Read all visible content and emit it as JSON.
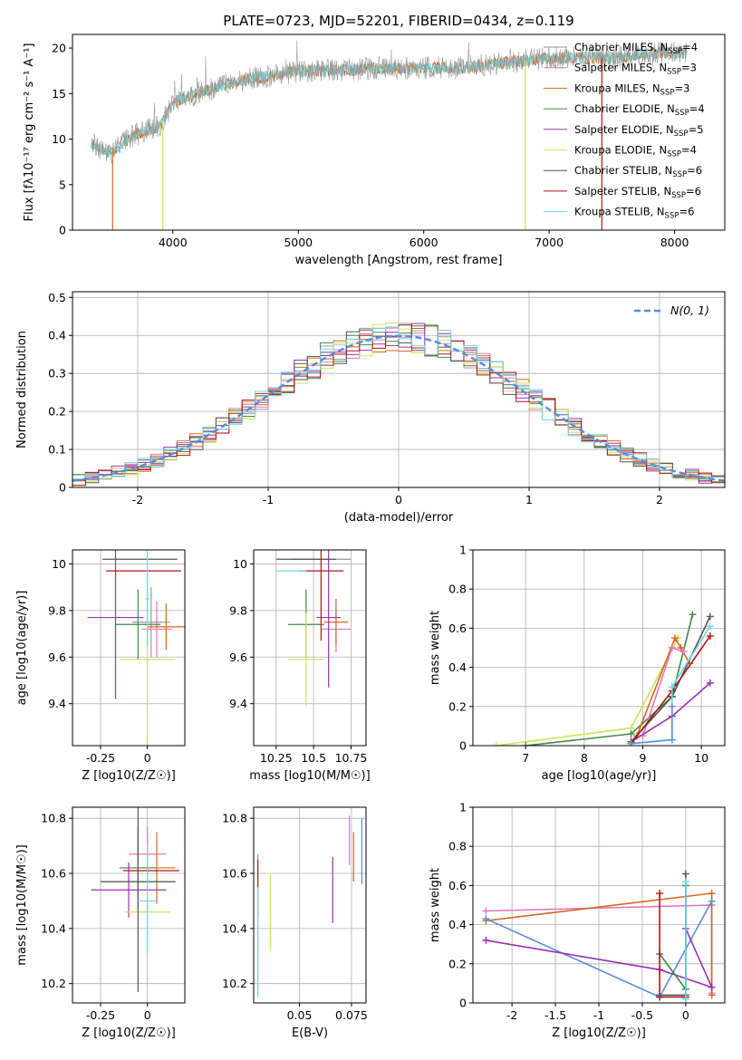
{
  "figure": {
    "title": "PLATE=0723, MJD=52201, FIBERID=0434, z=0.119"
  },
  "colors": {
    "chabrier_miles": "#999999",
    "salpeter_miles": "#e377c2",
    "kroupa_miles": "#d2691e",
    "chabrier_elodie": "#3c8c46",
    "salpeter_elodie": "#9b30b4",
    "kroupa_elodie": "#d4e157",
    "chabrier_stelib": "#555555",
    "salpeter_stelib": "#b01616",
    "kroupa_stelib": "#6fd8e0",
    "normal": "#5b8dd9"
  },
  "legend": [
    {
      "key": "chabrier_miles",
      "label": "Chabrier MILES, N",
      "sub": "SSP",
      "val": "=4"
    },
    {
      "key": "salpeter_miles",
      "label": "Salpeter MILES, N",
      "sub": "SSP",
      "val": "=3"
    },
    {
      "key": "kroupa_miles",
      "label": "Kroupa MILES, N",
      "sub": "SSP",
      "val": "=3"
    },
    {
      "key": "chabrier_elodie",
      "label": "Chabrier ELODIE, N",
      "sub": "SSP",
      "val": "=4"
    },
    {
      "key": "salpeter_elodie",
      "label": "Salpeter ELODIE, N",
      "sub": "SSP",
      "val": "=5"
    },
    {
      "key": "kroupa_elodie",
      "label": "Kroupa ELODIE, N",
      "sub": "SSP",
      "val": "=4"
    },
    {
      "key": "chabrier_stelib",
      "label": "Chabrier STELIB, N",
      "sub": "SSP",
      "val": "=6"
    },
    {
      "key": "salpeter_stelib",
      "label": "Salpeter STELIB, N",
      "sub": "SSP",
      "val": "=6"
    },
    {
      "key": "kroupa_stelib",
      "label": "Kroupa STELIB, N",
      "sub": "SSP",
      "val": "=6"
    }
  ],
  "chart_data": [
    {
      "id": "spectrum",
      "type": "line",
      "xlabel": "wavelength [Angstrom, rest frame]",
      "ylabel": "Flux [fλ10⁻¹⁷ erg cm⁻² s⁻¹ A⁻¹]",
      "xlim": [
        3200,
        8400
      ],
      "ylim": [
        0,
        21.5
      ],
      "xticks": [
        4000,
        5000,
        6000,
        7000,
        8000
      ],
      "yticks": [
        0,
        5,
        10,
        15,
        20
      ],
      "continuum": {
        "x": [
          3350,
          3500,
          3700,
          3900,
          4000,
          4200,
          4400,
          4700,
          5000,
          5300,
          5600,
          6000,
          6300,
          6600,
          6900,
          7200,
          7500,
          7800,
          8100
        ],
        "y": [
          9.5,
          8.5,
          10.5,
          11.5,
          14,
          15,
          16,
          16.8,
          17.5,
          17.5,
          17.8,
          17.8,
          17.8,
          18.3,
          18.8,
          19,
          18.8,
          19.5,
          19.5
        ]
      },
      "cutoffs": [
        {
          "key": "kroupa_miles",
          "x": 3520
        },
        {
          "key": "kroupa_elodie",
          "x": 3920
        },
        {
          "key": "kroupa_elodie",
          "x": 6810
        },
        {
          "key": "salpeter_stelib",
          "x": 7420
        }
      ]
    },
    {
      "id": "residuals",
      "type": "histogram",
      "xlabel": "(data-model)/error",
      "ylabel": "Normed distribution",
      "xlim": [
        -2.5,
        2.5
      ],
      "ylim": [
        0,
        0.515
      ],
      "xticks": [
        -2,
        -1,
        0,
        1,
        2
      ],
      "yticks": [
        0.0,
        0.1,
        0.2,
        0.3,
        0.4,
        0.5
      ],
      "legend": "N(0, 1)",
      "bin_width": 0.1
    },
    {
      "id": "age_vs_Z",
      "type": "scatter",
      "xlabel": "Z [log10(Z/Z☉)]",
      "ylabel": "age [log10(age/yr)]",
      "xlim": [
        -0.4,
        0.2
      ],
      "ylim": [
        9.22,
        10.06
      ],
      "xticks": [
        -0.25,
        0.0
      ],
      "yticks": [
        9.4,
        9.6,
        9.8,
        10.0
      ],
      "points": [
        {
          "key": "chabrier_miles",
          "x": 0.02,
          "y": 9.75,
          "xerr": 0.1,
          "yerr": 0.15
        },
        {
          "key": "salpeter_miles",
          "x": 0.05,
          "y": 9.72,
          "xerr": 0.08,
          "yerr": 0.12
        },
        {
          "key": "kroupa_miles",
          "x": 0.1,
          "y": 9.73,
          "xerr": 0.1,
          "yerr": 0.1
        },
        {
          "key": "chabrier_elodie",
          "x": -0.05,
          "y": 9.74,
          "xerr": 0.12,
          "yerr": 0.15
        },
        {
          "key": "salpeter_elodie",
          "x": -0.17,
          "y": 9.77,
          "xerr": 0.15,
          "yerr": 0.35
        },
        {
          "key": "kroupa_elodie",
          "x": 0.0,
          "y": 9.59,
          "xerr": 0.15,
          "yerr": 0.35
        },
        {
          "key": "chabrier_stelib",
          "x": -0.04,
          "y": 10.02,
          "xerr": 0.2,
          "yerr": 0.0
        },
        {
          "key": "salpeter_stelib",
          "x": -0.02,
          "y": 9.97,
          "xerr": 0.2,
          "yerr": 0.0
        },
        {
          "key": "kroupa_stelib",
          "x": 0.0,
          "y": 9.85,
          "xerr": 0.01,
          "yerr": 0.2
        }
      ]
    },
    {
      "id": "age_vs_mass",
      "type": "scatter",
      "xlabel": "mass [log10(M/M☉)]",
      "ylabel": "",
      "xlim": [
        10.1,
        10.85
      ],
      "ylim": [
        9.22,
        10.06
      ],
      "xticks": [
        10.25,
        10.5,
        10.75
      ],
      "yticks": [
        9.4,
        9.6,
        9.8,
        10.0
      ],
      "points": [
        {
          "key": "chabrier_miles",
          "x": 10.55,
          "y": 10.02,
          "xerr": 0.2,
          "yerr": 0.0
        },
        {
          "key": "salpeter_miles",
          "x": 10.65,
          "y": 9.72,
          "xerr": 0.1,
          "yerr": 0.1
        },
        {
          "key": "kroupa_miles",
          "x": 10.65,
          "y": 9.75,
          "xerr": 0.08,
          "yerr": 0.1
        },
        {
          "key": "chabrier_elodie",
          "x": 10.45,
          "y": 9.74,
          "xerr": 0.12,
          "yerr": 0.15
        },
        {
          "key": "salpeter_elodie",
          "x": 10.6,
          "y": 9.77,
          "xerr": 0.08,
          "yerr": 0.3
        },
        {
          "key": "kroupa_elodie",
          "x": 10.45,
          "y": 9.59,
          "xerr": 0.12,
          "yerr": 0.2
        },
        {
          "key": "chabrier_stelib",
          "x": 10.45,
          "y": 10.02,
          "xerr": 0.2,
          "yerr": 0.0
        },
        {
          "key": "salpeter_stelib",
          "x": 10.55,
          "y": 9.97,
          "xerr": 0.15,
          "yerr": 0.3
        },
        {
          "key": "kroupa_stelib",
          "x": 10.35,
          "y": 9.97,
          "xerr": 0.1,
          "yerr": 0.0
        }
      ]
    },
    {
      "id": "weight_vs_age",
      "type": "line",
      "xlabel": "age [log10(age/yr)]",
      "ylabel": "mass weight",
      "xlim": [
        6.1,
        10.4
      ],
      "ylim": [
        0,
        1.0
      ],
      "xticks": [
        7,
        8,
        9,
        10
      ],
      "yticks": [
        0.0,
        0.2,
        0.4,
        0.6,
        0.8,
        1.0
      ],
      "series": [
        {
          "key": "kroupa_elodie",
          "x": [
            6.5,
            8.8,
            9.6
          ],
          "y": [
            0.0,
            0.09,
            0.55
          ]
        },
        {
          "key": "chabrier_elodie",
          "x": [
            7.0,
            8.8,
            9.5,
            9.85
          ],
          "y": [
            0.0,
            0.06,
            0.25,
            0.67
          ]
        },
        {
          "key": "kroupa_miles",
          "x": [
            8.9,
            9.55,
            9.65,
            9.8
          ],
          "y": [
            0.05,
            0.55,
            0.5,
            0.42
          ]
        },
        {
          "key": "salpeter_miles",
          "x": [
            9.0,
            9.5,
            9.7
          ],
          "y": [
            0.05,
            0.5,
            0.48
          ]
        },
        {
          "key": "salpeter_elodie",
          "x": [
            8.8,
            9.5,
            10.15
          ],
          "y": [
            0.02,
            0.15,
            0.32
          ]
        },
        {
          "key": "chabrier_stelib",
          "x": [
            8.8,
            9.5,
            10.15
          ],
          "y": [
            0.02,
            0.25,
            0.66
          ]
        },
        {
          "key": "salpeter_stelib",
          "x": [
            8.8,
            9.5,
            10.15
          ],
          "y": [
            0.01,
            0.28,
            0.56
          ]
        },
        {
          "key": "kroupa_stelib",
          "x": [
            8.8,
            9.5,
            9.5,
            10.15
          ],
          "y": [
            0.01,
            0.03,
            0.3,
            0.61
          ]
        },
        {
          "key": "normal",
          "x": [
            8.8,
            9.5,
            9.5
          ],
          "y": [
            0.01,
            0.03,
            0.2
          ]
        }
      ]
    },
    {
      "id": "mass_vs_Z",
      "type": "scatter",
      "xlabel": "Z [log10(Z/Z☉)]",
      "ylabel": "mass [log10(M/M☉)]",
      "xlim": [
        -0.4,
        0.2
      ],
      "ylim": [
        10.13,
        10.84
      ],
      "xticks": [
        -0.25,
        0.0
      ],
      "yticks": [
        10.2,
        10.4,
        10.6,
        10.8
      ],
      "points": [
        {
          "key": "chabrier_miles",
          "x": -0.05,
          "y": 10.57,
          "xerr": 0.2,
          "yerr": 0.0
        },
        {
          "key": "salpeter_miles",
          "x": 0.0,
          "y": 10.67,
          "xerr": 0.1,
          "yerr": 0.1
        },
        {
          "key": "kroupa_miles",
          "x": 0.05,
          "y": 10.62,
          "xerr": 0.1,
          "yerr": 0.13
        },
        {
          "key": "chabrier_elodie",
          "x": -0.05,
          "y": 10.62,
          "xerr": 0.1,
          "yerr": 0.15
        },
        {
          "key": "salpeter_elodie",
          "x": -0.1,
          "y": 10.54,
          "xerr": 0.2,
          "yerr": 0.1
        },
        {
          "key": "kroupa_elodie",
          "x": 0.0,
          "y": 10.46,
          "xerr": 0.12,
          "yerr": 0.15
        },
        {
          "key": "chabrier_stelib",
          "x": -0.05,
          "y": 10.57,
          "xerr": 0.2,
          "yerr": 0.4
        },
        {
          "key": "salpeter_stelib",
          "x": 0.02,
          "y": 10.61,
          "xerr": 0.15,
          "yerr": 0.0
        },
        {
          "key": "kroupa_stelib",
          "x": 0.0,
          "y": 10.5,
          "xerr": 0.05,
          "yerr": 0.2
        }
      ]
    },
    {
      "id": "mass_vs_EBV",
      "type": "scatter",
      "xlabel": "E(B-V)",
      "ylabel": "",
      "xlim": [
        0.028,
        0.082
      ],
      "ylim": [
        10.13,
        10.84
      ],
      "xticks": [
        0.05,
        0.075
      ],
      "yticks": [
        10.2,
        10.4,
        10.6,
        10.8
      ],
      "points": [
        {
          "key": "chabrier_miles",
          "x": 0.03,
          "y": 10.42,
          "yerr": 0.25
        },
        {
          "key": "salpeter_stelib",
          "x": 0.03,
          "y": 10.55,
          "yerr": 0.1
        },
        {
          "key": "kroupa_stelib",
          "x": 0.03,
          "y": 10.35,
          "yerr": 0.2
        },
        {
          "key": "kroupa_elodie",
          "x": 0.036,
          "y": 10.46,
          "yerr": 0.14
        },
        {
          "key": "salpeter_elodie",
          "x": 0.066,
          "y": 10.54,
          "yerr": 0.12
        },
        {
          "key": "salpeter_miles",
          "x": 0.074,
          "y": 10.72,
          "yerr": 0.09
        },
        {
          "key": "kroupa_miles",
          "x": 0.076,
          "y": 10.66,
          "yerr": 0.09
        },
        {
          "key": "normal",
          "x": 0.08,
          "y": 10.68,
          "yerr": 0.12
        }
      ]
    },
    {
      "id": "weight_vs_Z",
      "type": "line",
      "xlabel": "Z [log10(Z/Z☉)]",
      "ylabel": "mass weight",
      "xlim": [
        -2.45,
        0.45
      ],
      "ylim": [
        0,
        1.0
      ],
      "xticks": [
        -2.0,
        -1.5,
        -1.0,
        -0.5,
        0.0
      ],
      "yticks": [
        0.0,
        0.2,
        0.4,
        0.6,
        0.8,
        1.0
      ],
      "series": [
        {
          "key": "salpeter_miles",
          "x": [
            -2.3,
            0.3,
            0.3
          ],
          "y": [
            0.47,
            0.5,
            0.05
          ]
        },
        {
          "key": "kroupa_miles",
          "x": [
            -2.3,
            0.3,
            0.3
          ],
          "y": [
            0.42,
            0.56,
            0.04
          ]
        },
        {
          "key": "normal",
          "x": [
            -2.3,
            -0.3,
            0.3
          ],
          "y": [
            0.43,
            0.03,
            0.52
          ]
        },
        {
          "key": "salpeter_elodie",
          "x": [
            -2.3,
            -0.3,
            0.3,
            0.0
          ],
          "y": [
            0.32,
            0.17,
            0.08,
            0.38
          ]
        },
        {
          "key": "chabrier_elodie",
          "x": [
            -0.3,
            0.0,
            0.0
          ],
          "y": [
            0.25,
            0.07,
            0.6
          ]
        },
        {
          "key": "salpeter_stelib",
          "x": [
            -0.3,
            -0.3,
            0.0
          ],
          "y": [
            0.56,
            0.03,
            0.03
          ]
        },
        {
          "key": "chabrier_stelib",
          "x": [
            -0.3,
            0.0,
            0.0
          ],
          "y": [
            0.04,
            0.04,
            0.66
          ]
        },
        {
          "key": "kroupa_stelib",
          "x": [
            0.0,
            0.0
          ],
          "y": [
            0.02,
            0.62
          ]
        }
      ]
    }
  ]
}
